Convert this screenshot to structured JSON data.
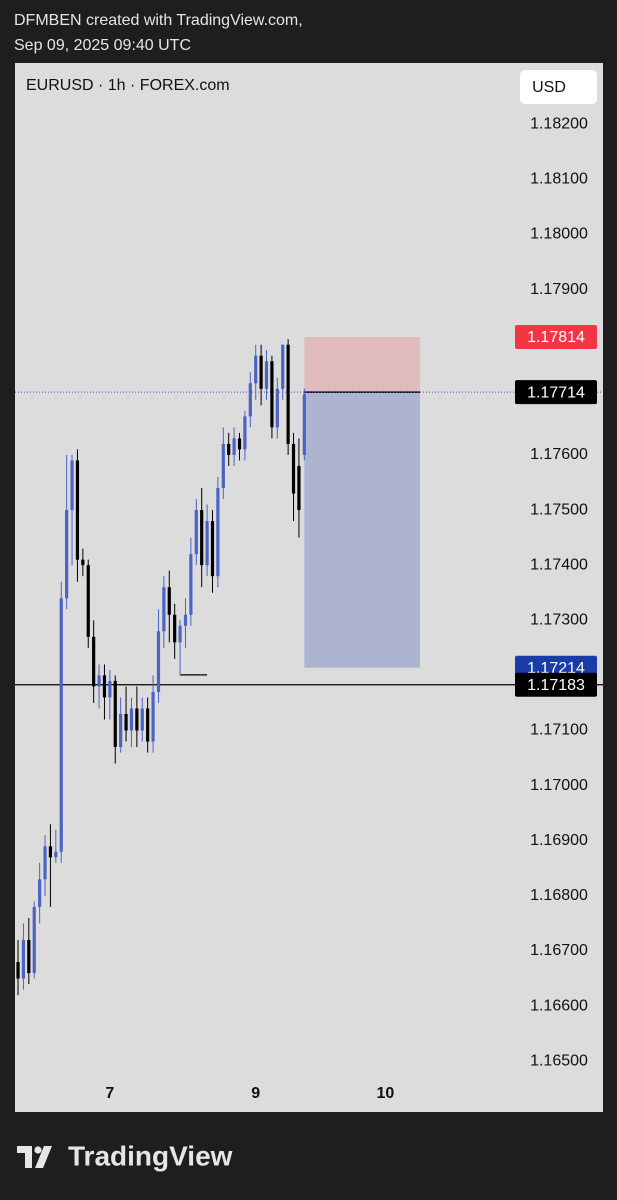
{
  "header": {
    "line1": "DFMBEN created with TradingView.com,",
    "line2": "Sep 09, 2025 09:40 UTC"
  },
  "footer": {
    "brand": "TradingView"
  },
  "chart_data": {
    "type": "candlestick",
    "title": "EURUSD · 1h · FOREX.com",
    "currency": "USD",
    "up_color": "#4a63c4",
    "down_color": "#000000",
    "x": [
      0,
      1,
      2,
      3,
      4,
      5,
      6,
      7,
      8,
      9,
      10,
      11,
      12,
      13,
      14,
      15,
      16,
      17,
      18,
      19,
      20,
      21,
      22,
      23,
      24,
      25,
      26,
      27,
      28,
      29,
      30,
      31,
      32,
      33,
      34,
      35,
      36,
      37,
      38,
      39,
      40,
      41,
      42,
      43,
      44,
      45,
      46,
      47,
      48,
      49,
      50,
      51,
      52,
      53
    ],
    "open": [
      1.1668,
      1.1665,
      1.1672,
      1.1666,
      1.1678,
      1.1683,
      1.1689,
      1.1687,
      1.1688,
      1.1734,
      1.175,
      1.1759,
      1.1741,
      1.174,
      1.1727,
      1.1718,
      1.172,
      1.1716,
      1.1719,
      1.1707,
      1.1713,
      1.171,
      1.1714,
      1.171,
      1.1714,
      1.1708,
      1.1717,
      1.1728,
      1.1736,
      1.1731,
      1.1726,
      1.1729,
      1.1731,
      1.1742,
      1.175,
      1.174,
      1.1748,
      1.1738,
      1.1754,
      1.1762,
      1.176,
      1.1763,
      1.1761,
      1.1767,
      1.1773,
      1.1778,
      1.1772,
      1.1777,
      1.1765,
      1.1772,
      1.178,
      1.1762,
      1.1758,
      1.176
    ],
    "high": [
      1.1672,
      1.1675,
      1.1676,
      1.1679,
      1.1686,
      1.1691,
      1.1693,
      1.1692,
      1.1737,
      1.176,
      1.176,
      1.1761,
      1.1743,
      1.1741,
      1.173,
      1.1722,
      1.1722,
      1.1721,
      1.172,
      1.1716,
      1.1718,
      1.1716,
      1.1718,
      1.1716,
      1.1716,
      1.172,
      1.1732,
      1.1738,
      1.1739,
      1.1733,
      1.173,
      1.1734,
      1.1745,
      1.1752,
      1.1754,
      1.1751,
      1.175,
      1.1756,
      1.1765,
      1.1764,
      1.1765,
      1.1764,
      1.1768,
      1.1775,
      1.178,
      1.178,
      1.1779,
      1.1778,
      1.1774,
      1.178,
      1.1781,
      1.1764,
      1.1763,
      1.1772
    ],
    "low": [
      1.1662,
      1.1663,
      1.1664,
      1.1665,
      1.1675,
      1.168,
      1.1678,
      1.1686,
      1.1686,
      1.1732,
      1.174,
      1.1737,
      1.1738,
      1.1725,
      1.1715,
      1.1714,
      1.1712,
      1.1712,
      1.1704,
      1.1706,
      1.1708,
      1.1707,
      1.1707,
      1.1708,
      1.1706,
      1.1706,
      1.1715,
      1.1725,
      1.1726,
      1.1723,
      1.172,
      1.1725,
      1.1729,
      1.174,
      1.1736,
      1.1738,
      1.1735,
      1.1736,
      1.1752,
      1.1758,
      1.1758,
      1.1759,
      1.1759,
      1.1765,
      1.177,
      1.1769,
      1.177,
      1.1763,
      1.1763,
      1.177,
      1.176,
      1.1748,
      1.1745,
      1.1759
    ],
    "close": [
      1.1665,
      1.1672,
      1.1666,
      1.1678,
      1.1683,
      1.1689,
      1.1687,
      1.1688,
      1.1734,
      1.175,
      1.1759,
      1.1741,
      1.174,
      1.1727,
      1.1718,
      1.172,
      1.1716,
      1.1719,
      1.1707,
      1.1713,
      1.171,
      1.1714,
      1.171,
      1.1714,
      1.1708,
      1.1717,
      1.1728,
      1.1736,
      1.1731,
      1.1726,
      1.1729,
      1.1731,
      1.1742,
      1.175,
      1.174,
      1.1748,
      1.1738,
      1.1754,
      1.1762,
      1.176,
      1.1763,
      1.1761,
      1.1767,
      1.1773,
      1.1778,
      1.1772,
      1.1777,
      1.1765,
      1.1772,
      1.178,
      1.1762,
      1.1753,
      1.175,
      1.1771
    ],
    "xlim": [
      -0.56,
      92
    ],
    "ylim": [
      1.16466,
      1.18311
    ],
    "xticks": [
      {
        "value": 17,
        "label": "7"
      },
      {
        "value": 44,
        "label": "9"
      },
      {
        "value": 68,
        "label": "10"
      }
    ],
    "yticks": [
      {
        "value": 1.182,
        "label": "1.18200"
      },
      {
        "value": 1.181,
        "label": "1.18100"
      },
      {
        "value": 1.18,
        "label": "1.18000"
      },
      {
        "value": 1.179,
        "label": "1.17900"
      },
      {
        "value": 1.178,
        "label": "1.17800"
      },
      {
        "value": 1.177,
        "label": "1.17700"
      },
      {
        "value": 1.176,
        "label": "1.17600"
      },
      {
        "value": 1.175,
        "label": "1.17500"
      },
      {
        "value": 1.174,
        "label": "1.17400"
      },
      {
        "value": 1.173,
        "label": "1.17300"
      },
      {
        "value": 1.172,
        "label": "1.17200"
      },
      {
        "value": 1.171,
        "label": "1.17100"
      },
      {
        "value": 1.17,
        "label": "1.17000"
      },
      {
        "value": 1.169,
        "label": "1.16900"
      },
      {
        "value": 1.168,
        "label": "1.16800"
      },
      {
        "value": 1.167,
        "label": "1.16700"
      },
      {
        "value": 1.166,
        "label": "1.16600"
      },
      {
        "value": 1.165,
        "label": "1.16500"
      }
    ],
    "hlines": [
      {
        "value": 1.17183,
        "color": "#000000",
        "badge_color": "#000000",
        "dotted": false
      },
      {
        "value": 1.17714,
        "color": "#3a5bd6",
        "badge_color": "#000000",
        "dotted": true
      }
    ],
    "position": {
      "x_start": 53,
      "x_end": 74.4,
      "entry": 1.17714,
      "stop": 1.17814,
      "target": 1.17214,
      "stop_color": "#f23645",
      "target_color": "#1a3ca8"
    },
    "low_marker": {
      "value": 1.17201,
      "x_start": 30,
      "x_end": 35
    }
  }
}
